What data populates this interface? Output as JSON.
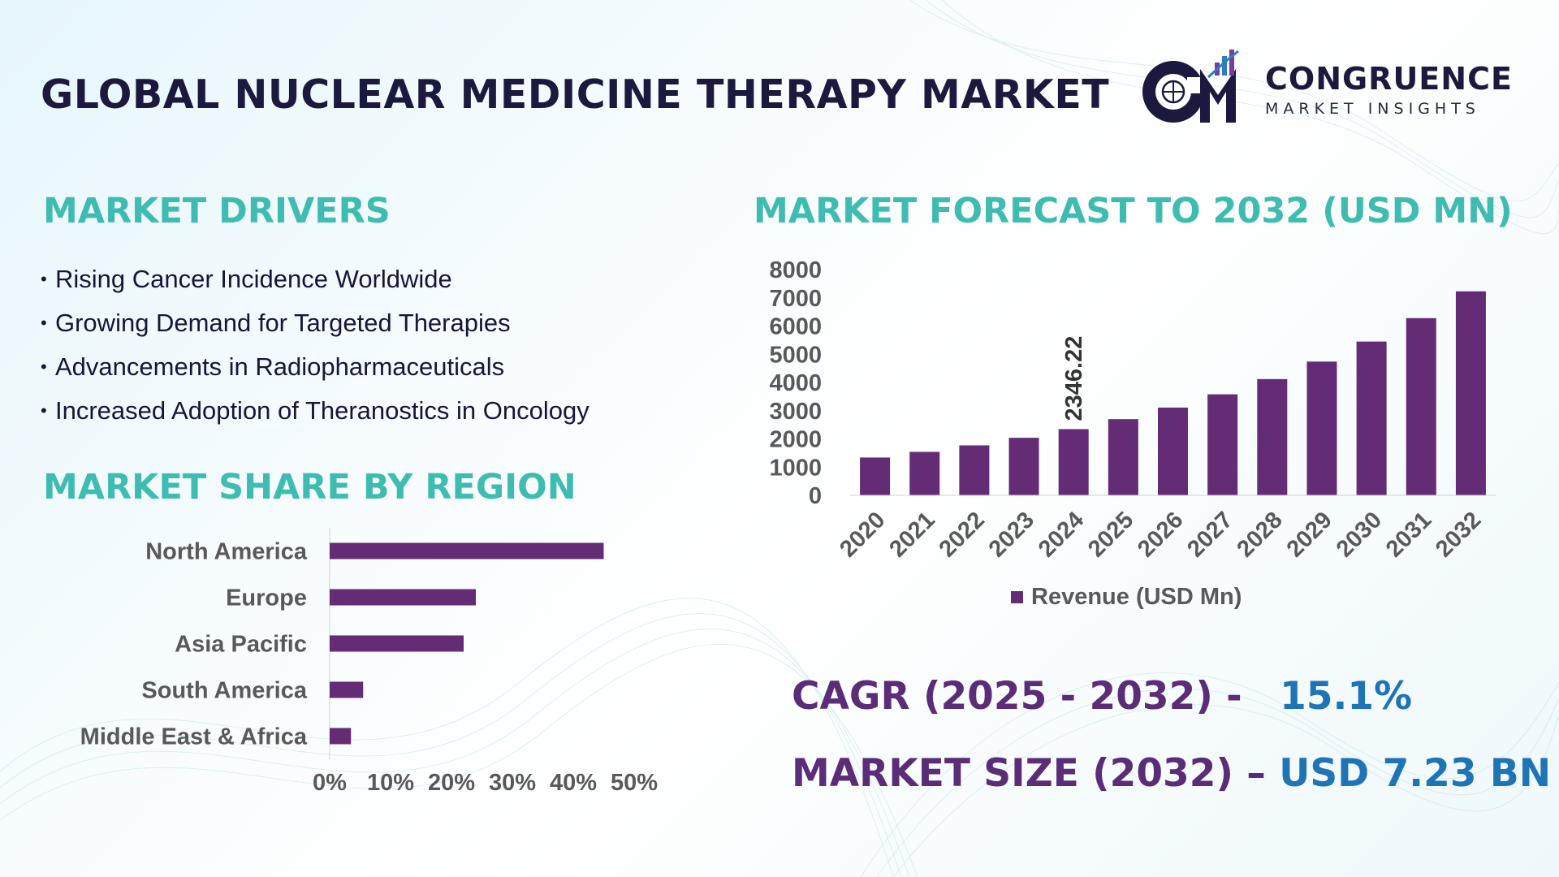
{
  "header": {
    "title": "GLOBAL NUCLEAR MEDICINE THERAPY MARKET",
    "logo_name": "CONGRUENCE",
    "logo_sub": "MARKET INSIGHTS",
    "logo_mark": "CM"
  },
  "colors": {
    "bar": "#632c74",
    "heading": "#3fbcb2",
    "kpi_label": "#5b2d78",
    "kpi_value": "#1f74b6",
    "title": "#1b1a3e"
  },
  "drivers": {
    "heading": "MARKET DRIVERS",
    "items": [
      "Rising Cancer Incidence Worldwide",
      "Growing Demand for Targeted Therapies",
      "Advancements in Radiopharmaceuticals",
      "Increased Adoption of Theranostics in Oncology"
    ]
  },
  "region": {
    "heading": "MARKET SHARE BY REGION"
  },
  "forecast": {
    "heading": "MARKET FORECAST TO 2032 (USD MN)"
  },
  "kpis": {
    "cagr_label": "CAGR (2025 - 2032) -",
    "cagr_value": "15.1%",
    "size_label": "MARKET SIZE (2032) –",
    "size_value": "USD 7.23 BN"
  },
  "chart_data": [
    {
      "type": "bar",
      "orientation": "horizontal",
      "categories": [
        "North America",
        "Europe",
        "Asia Pacific",
        "South America",
        "Middle East & Africa"
      ],
      "values": [
        45,
        24,
        22,
        5.5,
        3.5
      ],
      "xlim": [
        0,
        50
      ],
      "xticks": [
        "0%",
        "10%",
        "20%",
        "30%",
        "40%",
        "50%"
      ],
      "grid": false,
      "legend": "none"
    },
    {
      "type": "bar",
      "categories": [
        "2020",
        "2021",
        "2022",
        "2023",
        "2024",
        "2025",
        "2026",
        "2027",
        "2028",
        "2029",
        "2030",
        "2031",
        "2032"
      ],
      "series": [
        {
          "name": "Revenue (USD Mn)",
          "values": [
            1340,
            1540,
            1770,
            2040,
            2346.22,
            2700,
            3110,
            3580,
            4120,
            4740,
            5450,
            6280,
            7230
          ]
        }
      ],
      "ylim": [
        0,
        8000
      ],
      "yticks": [
        "0",
        "1000",
        "2000",
        "3000",
        "4000",
        "5000",
        "6000",
        "7000",
        "8000"
      ],
      "annotations": [
        {
          "category": "2024",
          "label": "2346.22"
        }
      ],
      "grid": false,
      "legend": "bottom"
    }
  ]
}
